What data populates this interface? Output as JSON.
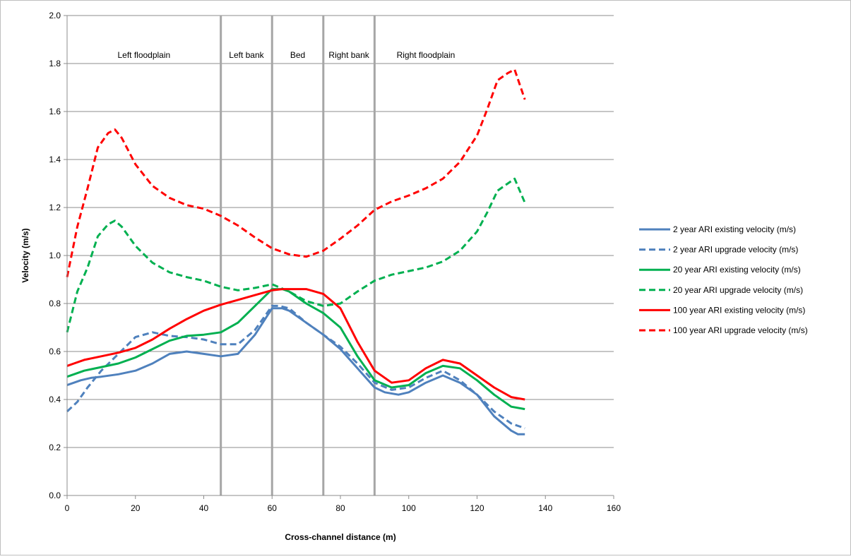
{
  "chart_data": {
    "type": "line",
    "xlabel": "Cross-channel distance  (m)",
    "ylabel": "Velocity (m/s)",
    "xlim": [
      0,
      160
    ],
    "ylim": [
      0,
      2.0
    ],
    "xticks": [
      0,
      20,
      40,
      60,
      80,
      100,
      120,
      140,
      160
    ],
    "yticks": [
      0.0,
      0.2,
      0.4,
      0.6,
      0.8,
      1.0,
      1.2,
      1.4,
      1.6,
      1.8,
      2.0
    ],
    "xtick_labels": [
      "0",
      "20",
      "40",
      "60",
      "80",
      "100",
      "120",
      "140",
      "160"
    ],
    "ytick_labels": [
      "0.0",
      "0.2",
      "0.4",
      "0.6",
      "0.8",
      "1.0",
      "1.2",
      "1.4",
      "1.6",
      "1.8",
      "2.0"
    ],
    "grid": "horizontal",
    "legend_position": "right",
    "region_boundaries": [
      45,
      60,
      75,
      90
    ],
    "regions": [
      {
        "label": "Left floodplain",
        "x_center": 22.5
      },
      {
        "label": "Left bank",
        "x_center": 52.5
      },
      {
        "label": "Bed",
        "x_center": 67.5
      },
      {
        "label": "Right bank",
        "x_center": 82.5
      },
      {
        "label": "Right floodplain",
        "x_center": 105
      }
    ],
    "series": [
      {
        "name": "2 year ARI existing velocity (m/s)",
        "color": "#4F81BD",
        "dashed": false,
        "x": [
          0,
          2,
          4,
          7,
          10,
          15,
          20,
          25,
          30,
          35,
          40,
          45,
          50,
          55,
          60,
          63,
          65,
          70,
          75,
          80,
          85,
          90,
          93,
          97,
          100,
          105,
          110,
          115,
          120,
          125,
          130,
          132,
          134
        ],
        "y": [
          0.46,
          0.47,
          0.48,
          0.49,
          0.495,
          0.505,
          0.52,
          0.55,
          0.59,
          0.6,
          0.59,
          0.58,
          0.59,
          0.67,
          0.78,
          0.78,
          0.77,
          0.72,
          0.67,
          0.61,
          0.53,
          0.45,
          0.43,
          0.42,
          0.43,
          0.47,
          0.5,
          0.47,
          0.42,
          0.33,
          0.27,
          0.255,
          0.255
        ]
      },
      {
        "name": "2 year ARI upgrade velocity (m/s)",
        "color": "#4F81BD",
        "dashed": true,
        "x": [
          0,
          3,
          6,
          10,
          15,
          20,
          25,
          30,
          35,
          40,
          45,
          50,
          55,
          60,
          62,
          65,
          70,
          75,
          80,
          85,
          90,
          95,
          100,
          105,
          110,
          115,
          120,
          125,
          130,
          134
        ],
        "y": [
          0.35,
          0.39,
          0.45,
          0.52,
          0.59,
          0.66,
          0.68,
          0.665,
          0.66,
          0.65,
          0.63,
          0.63,
          0.69,
          0.79,
          0.79,
          0.78,
          0.72,
          0.67,
          0.62,
          0.55,
          0.47,
          0.44,
          0.45,
          0.49,
          0.52,
          0.48,
          0.42,
          0.35,
          0.3,
          0.28
        ]
      },
      {
        "name": "20 year ARI existing velocity (m/s)",
        "color": "#00B050",
        "dashed": false,
        "x": [
          0,
          2,
          5,
          10,
          15,
          20,
          25,
          30,
          35,
          40,
          45,
          50,
          55,
          60,
          63,
          65,
          70,
          75,
          80,
          85,
          90,
          95,
          100,
          105,
          110,
          115,
          120,
          125,
          130,
          134
        ],
        "y": [
          0.495,
          0.505,
          0.52,
          0.535,
          0.55,
          0.575,
          0.61,
          0.645,
          0.665,
          0.67,
          0.68,
          0.72,
          0.79,
          0.86,
          0.86,
          0.85,
          0.8,
          0.76,
          0.7,
          0.58,
          0.48,
          0.45,
          0.46,
          0.51,
          0.54,
          0.53,
          0.48,
          0.42,
          0.37,
          0.36
        ]
      },
      {
        "name": "20 year ARI upgrade velocity (m/s)",
        "color": "#00B050",
        "dashed": true,
        "x": [
          0,
          3,
          6,
          9,
          12,
          14,
          16,
          20,
          25,
          30,
          35,
          40,
          45,
          50,
          55,
          60,
          65,
          70,
          75,
          80,
          85,
          90,
          95,
          100,
          105,
          110,
          115,
          120,
          123,
          126,
          129,
          131,
          134
        ],
        "y": [
          0.68,
          0.85,
          0.95,
          1.08,
          1.13,
          1.145,
          1.12,
          1.04,
          0.97,
          0.93,
          0.91,
          0.895,
          0.87,
          0.855,
          0.865,
          0.88,
          0.85,
          0.81,
          0.79,
          0.8,
          0.85,
          0.895,
          0.92,
          0.935,
          0.95,
          0.975,
          1.02,
          1.1,
          1.18,
          1.27,
          1.3,
          1.32,
          1.22
        ]
      },
      {
        "name": "100 year ARI existing velocity (m/s)",
        "color": "#FF0000",
        "dashed": false,
        "x": [
          0,
          2,
          5,
          10,
          15,
          20,
          25,
          30,
          35,
          40,
          45,
          50,
          55,
          60,
          63,
          65,
          70,
          75,
          80,
          85,
          90,
          95,
          100,
          105,
          110,
          115,
          120,
          125,
          130,
          134
        ],
        "y": [
          0.54,
          0.55,
          0.565,
          0.58,
          0.595,
          0.615,
          0.65,
          0.695,
          0.735,
          0.77,
          0.795,
          0.815,
          0.835,
          0.855,
          0.86,
          0.86,
          0.86,
          0.84,
          0.78,
          0.64,
          0.52,
          0.47,
          0.48,
          0.53,
          0.565,
          0.55,
          0.5,
          0.45,
          0.41,
          0.4
        ]
      },
      {
        "name": "100 year ARI upgrade velocity (m/s)",
        "color": "#FF0000",
        "dashed": true,
        "x": [
          0,
          3,
          6,
          9,
          12,
          14,
          16,
          20,
          25,
          30,
          35,
          40,
          45,
          50,
          55,
          60,
          65,
          70,
          75,
          80,
          85,
          90,
          95,
          100,
          105,
          110,
          115,
          120,
          123,
          126,
          129,
          131,
          134
        ],
        "y": [
          0.91,
          1.12,
          1.28,
          1.45,
          1.51,
          1.525,
          1.49,
          1.38,
          1.29,
          1.24,
          1.21,
          1.195,
          1.165,
          1.125,
          1.075,
          1.03,
          1.005,
          0.995,
          1.02,
          1.07,
          1.125,
          1.19,
          1.225,
          1.25,
          1.28,
          1.32,
          1.39,
          1.5,
          1.61,
          1.73,
          1.76,
          1.775,
          1.65
        ]
      }
    ]
  }
}
